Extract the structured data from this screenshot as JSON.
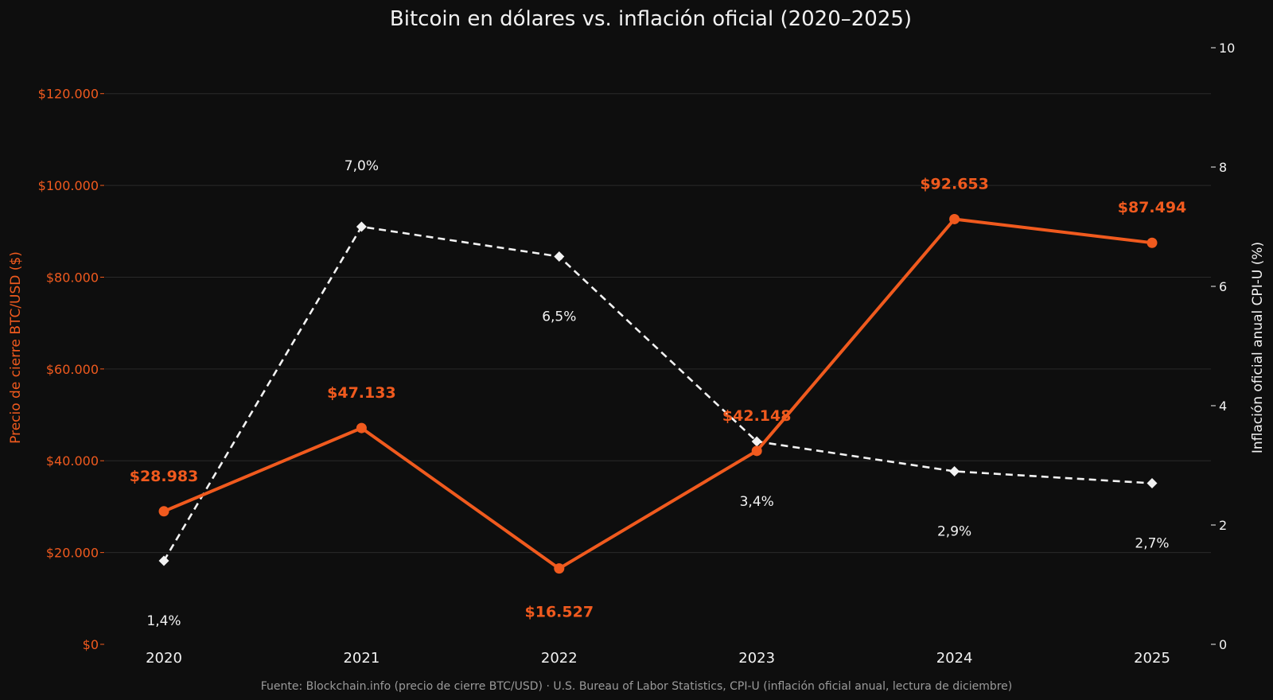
{
  "colors": {
    "background": "#0e0e0e",
    "btc_series": "#f05a1e",
    "cpi_series": "#f2f2f2",
    "grid": "#2a2a2a",
    "source_text": "#9a9a9a"
  },
  "chart_data": {
    "type": "line",
    "title": "Bitcoin en dólares vs. inflación oficial (2020–2025)",
    "x": [
      "2020",
      "2021",
      "2022",
      "2023",
      "2024",
      "2025"
    ],
    "left_axis": {
      "label": "Precio de cierre BTC/USD ($)",
      "range": [
        0,
        130000
      ],
      "ticks": [
        0,
        20000,
        40000,
        60000,
        80000,
        100000,
        120000
      ],
      "tick_labels": [
        "$0",
        "$20.000",
        "$40.000",
        "$60.000",
        "$80.000",
        "$100.000",
        "$120.000"
      ]
    },
    "right_axis": {
      "label": "Inflación oficial anual CPI-U (%)",
      "range": [
        0,
        10
      ],
      "ticks": [
        0,
        2,
        4,
        6,
        8,
        10
      ],
      "tick_labels": [
        "0",
        "2",
        "4",
        "6",
        "8",
        "10"
      ]
    },
    "series": [
      {
        "axis": "left",
        "style": "solid",
        "marker": "circle",
        "color": "#f05a1e",
        "values": [
          28983,
          47133,
          16527,
          42148,
          92653,
          87494
        ],
        "data_labels": [
          "$28.983",
          "$47.133",
          "$16.527",
          "$42.148",
          "$92.653",
          "$87.494"
        ],
        "label_positions": [
          "above",
          "above",
          "below",
          "above",
          "above",
          "above"
        ]
      },
      {
        "axis": "right",
        "style": "dashed",
        "marker": "diamond",
        "color": "#f2f2f2",
        "values": [
          1.4,
          7.0,
          6.5,
          3.4,
          2.9,
          2.7
        ],
        "data_labels": [
          "1,4%",
          "7,0%",
          "6,5%",
          "3,4%",
          "2,9%",
          "2,7%"
        ],
        "label_positions": [
          "below",
          "above",
          "below",
          "below",
          "below",
          "below"
        ]
      }
    ],
    "grid": true,
    "source": "Fuente: Blockchain.info (precio de cierre BTC/USD) · U.S. Bureau of Labor Statistics, CPI-U (inflación oficial anual, lectura de diciembre)"
  }
}
